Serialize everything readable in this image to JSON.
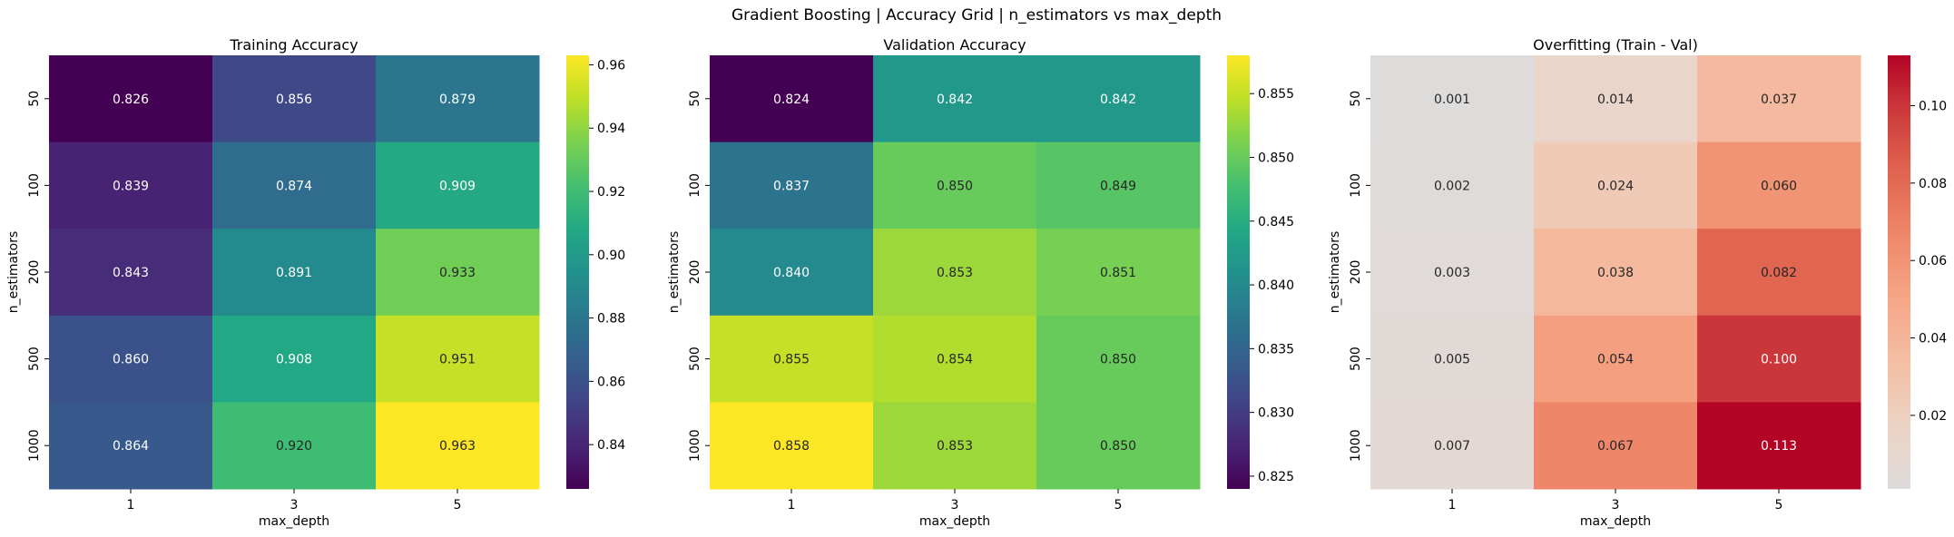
{
  "suptitle": "Gradient Boosting | Accuracy Grid | n_estimators vs max_depth",
  "chart_data": [
    {
      "type": "heatmap",
      "title": "Training Accuracy",
      "xlabel": "max_depth",
      "ylabel": "n_estimators",
      "x_categories": [
        "1",
        "3",
        "5"
      ],
      "y_categories": [
        "50",
        "100",
        "200",
        "500",
        "1000"
      ],
      "values": [
        [
          0.826,
          0.856,
          0.879
        ],
        [
          0.839,
          0.874,
          0.909
        ],
        [
          0.843,
          0.891,
          0.933
        ],
        [
          0.86,
          0.908,
          0.951
        ],
        [
          0.864,
          0.92,
          0.963
        ]
      ],
      "colormap": "viridis",
      "vmin": 0.826,
      "vmax": 0.963,
      "colorbar_ticks": [
        "0.84",
        "0.86",
        "0.88",
        "0.90",
        "0.92",
        "0.94",
        "0.96"
      ]
    },
    {
      "type": "heatmap",
      "title": "Validation Accuracy",
      "xlabel": "max_depth",
      "ylabel": "n_estimators",
      "x_categories": [
        "1",
        "3",
        "5"
      ],
      "y_categories": [
        "50",
        "100",
        "200",
        "500",
        "1000"
      ],
      "values": [
        [
          0.824,
          0.842,
          0.842
        ],
        [
          0.837,
          0.85,
          0.849
        ],
        [
          0.84,
          0.853,
          0.851
        ],
        [
          0.855,
          0.854,
          0.85
        ],
        [
          0.858,
          0.853,
          0.85
        ]
      ],
      "colormap": "viridis",
      "vmin": 0.824,
      "vmax": 0.858,
      "colorbar_ticks": [
        "0.825",
        "0.830",
        "0.835",
        "0.840",
        "0.845",
        "0.850",
        "0.855"
      ]
    },
    {
      "type": "heatmap",
      "title": "Overfitting (Train - Val)",
      "xlabel": "max_depth",
      "ylabel": "n_estimators",
      "x_categories": [
        "1",
        "3",
        "5"
      ],
      "y_categories": [
        "50",
        "100",
        "200",
        "500",
        "1000"
      ],
      "values": [
        [
          0.001,
          0.014,
          0.037
        ],
        [
          0.002,
          0.024,
          0.06
        ],
        [
          0.003,
          0.038,
          0.082
        ],
        [
          0.005,
          0.054,
          0.1
        ],
        [
          0.007,
          0.067,
          0.113
        ]
      ],
      "colormap": "coolwarm",
      "center": 0,
      "vmin": 0.001,
      "vmax": 0.113,
      "colorbar_ticks": [
        "0.02",
        "0.04",
        "0.06",
        "0.08",
        "0.10"
      ]
    }
  ]
}
